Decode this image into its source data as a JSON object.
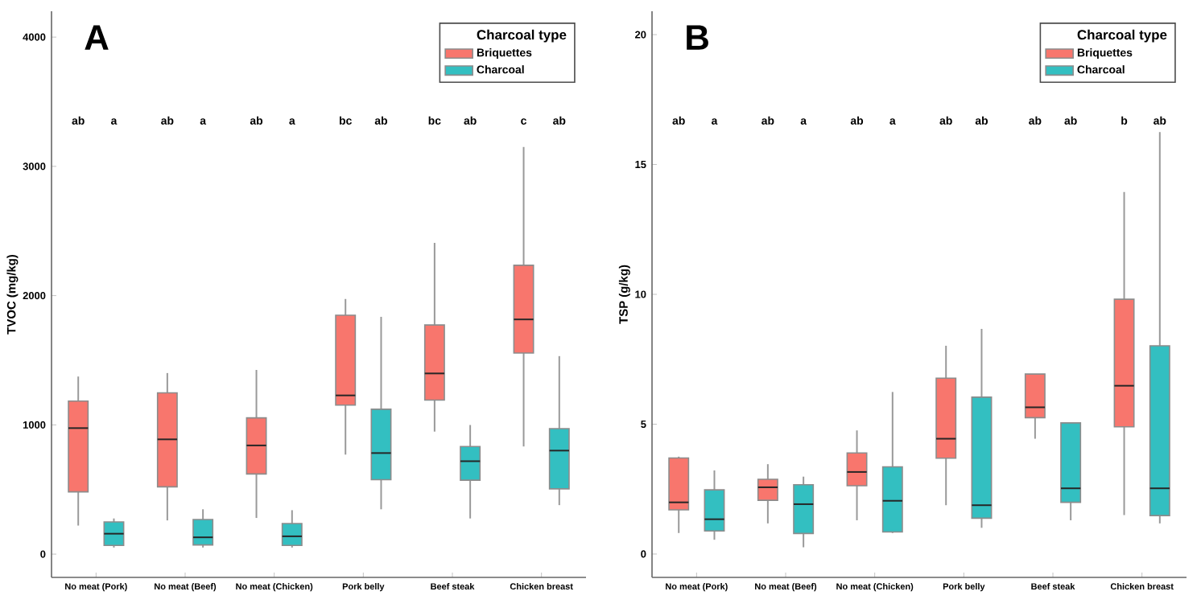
{
  "chart_data": [
    {
      "type": "box",
      "ylabel": "TVOC (mg/kg)",
      "categories": [
        "No meat (Pork)",
        "No meat (Beef)",
        "No meat (Chicken)",
        "Pork belly",
        "Beef steak",
        "Chicken breast"
      ],
      "ylim": [
        -180,
        4200
      ],
      "yticks": [
        0,
        1000,
        2000,
        3000,
        4000
      ],
      "legend": "top right",
      "legend_title": "Charcoal type",
      "series": [
        {
          "name": "Briquettes",
          "color": "#f8766d",
          "boxes": [
            {
              "low": 221,
              "q1": 482,
              "median": 975,
              "q3": 1184,
              "high": 1374
            },
            {
              "low": 261,
              "q1": 521,
              "median": 888,
              "q3": 1248,
              "high": 1401
            },
            {
              "low": 280,
              "q1": 620,
              "median": 841,
              "q3": 1054,
              "high": 1425
            },
            {
              "low": 770,
              "q1": 1153,
              "median": 1228,
              "q3": 1848,
              "high": 1974
            },
            {
              "low": 948,
              "q1": 1192,
              "median": 1398,
              "q3": 1773,
              "high": 2408
            },
            {
              "low": 833,
              "q1": 1556,
              "median": 1816,
              "q3": 2235,
              "high": 3150
            }
          ]
        },
        {
          "name": "Charcoal",
          "color": "#33bfc1",
          "boxes": [
            {
              "low": 51,
              "q1": 67,
              "median": 158,
              "q3": 249,
              "high": 276
            },
            {
              "low": 51,
              "q1": 71,
              "median": 130,
              "q3": 268,
              "high": 347
            },
            {
              "low": 51,
              "q1": 67,
              "median": 138,
              "q3": 237,
              "high": 340
            },
            {
              "low": 347,
              "q1": 576,
              "median": 782,
              "q3": 1121,
              "high": 1836
            },
            {
              "low": 276,
              "q1": 572,
              "median": 719,
              "q3": 833,
              "high": 999
            },
            {
              "low": 379,
              "q1": 505,
              "median": 801,
              "q3": 971,
              "high": 1532
            }
          ]
        }
      ],
      "annotations": [
        "A",
        "ab",
        "a",
        "ab",
        "a",
        "ab",
        "a",
        "bc",
        "ab",
        "bc",
        "ab",
        "c",
        "ab"
      ]
    },
    {
      "type": "box",
      "ylabel": "TSP (g/kg)",
      "categories": [
        "No meat (Pork)",
        "No meat (Beef)",
        "No meat (Chicken)",
        "Pork belly",
        "Beef steak",
        "Chicken breast"
      ],
      "ylim": [
        -0.9,
        20.9
      ],
      "yticks": [
        0,
        5,
        10,
        15,
        20
      ],
      "legend": "top right",
      "legend_title": "Charcoal type",
      "series": [
        {
          "name": "Briquettes",
          "color": "#f8766d",
          "boxes": [
            {
              "low": 0.81,
              "q1": 1.7,
              "median": 1.99,
              "q3": 3.7,
              "high": 3.75
            },
            {
              "low": 1.18,
              "q1": 2.07,
              "median": 2.57,
              "q3": 2.88,
              "high": 3.46
            },
            {
              "low": 1.3,
              "q1": 2.63,
              "median": 3.16,
              "q3": 3.89,
              "high": 4.76
            },
            {
              "low": 1.88,
              "q1": 3.69,
              "median": 4.44,
              "q3": 6.77,
              "high": 8.02
            },
            {
              "low": 4.44,
              "q1": 5.25,
              "median": 5.65,
              "q3": 6.93,
              "high": 6.93
            },
            {
              "low": 1.5,
              "q1": 4.9,
              "median": 6.48,
              "q3": 9.81,
              "high": 13.94
            }
          ]
        },
        {
          "name": "Charcoal",
          "color": "#33bfc1",
          "boxes": [
            {
              "low": 0.55,
              "q1": 0.89,
              "median": 1.34,
              "q3": 2.47,
              "high": 3.22
            },
            {
              "low": 0.26,
              "q1": 0.79,
              "median": 1.92,
              "q3": 2.67,
              "high": 2.98
            },
            {
              "low": 0.81,
              "q1": 0.85,
              "median": 2.05,
              "q3": 3.36,
              "high": 6.24
            },
            {
              "low": 1.01,
              "q1": 1.38,
              "median": 1.88,
              "q3": 6.04,
              "high": 8.67
            },
            {
              "low": 1.3,
              "q1": 1.99,
              "median": 2.53,
              "q3": 5.05,
              "high": 5.05
            },
            {
              "low": 1.18,
              "q1": 1.48,
              "median": 2.53,
              "q3": 8.02,
              "high": 16.25
            }
          ]
        }
      ],
      "annotations": [
        "B",
        "ab",
        "a",
        "ab",
        "a",
        "ab",
        "a",
        "ab",
        "ab",
        "ab",
        "ab",
        "b",
        "ab"
      ]
    }
  ]
}
